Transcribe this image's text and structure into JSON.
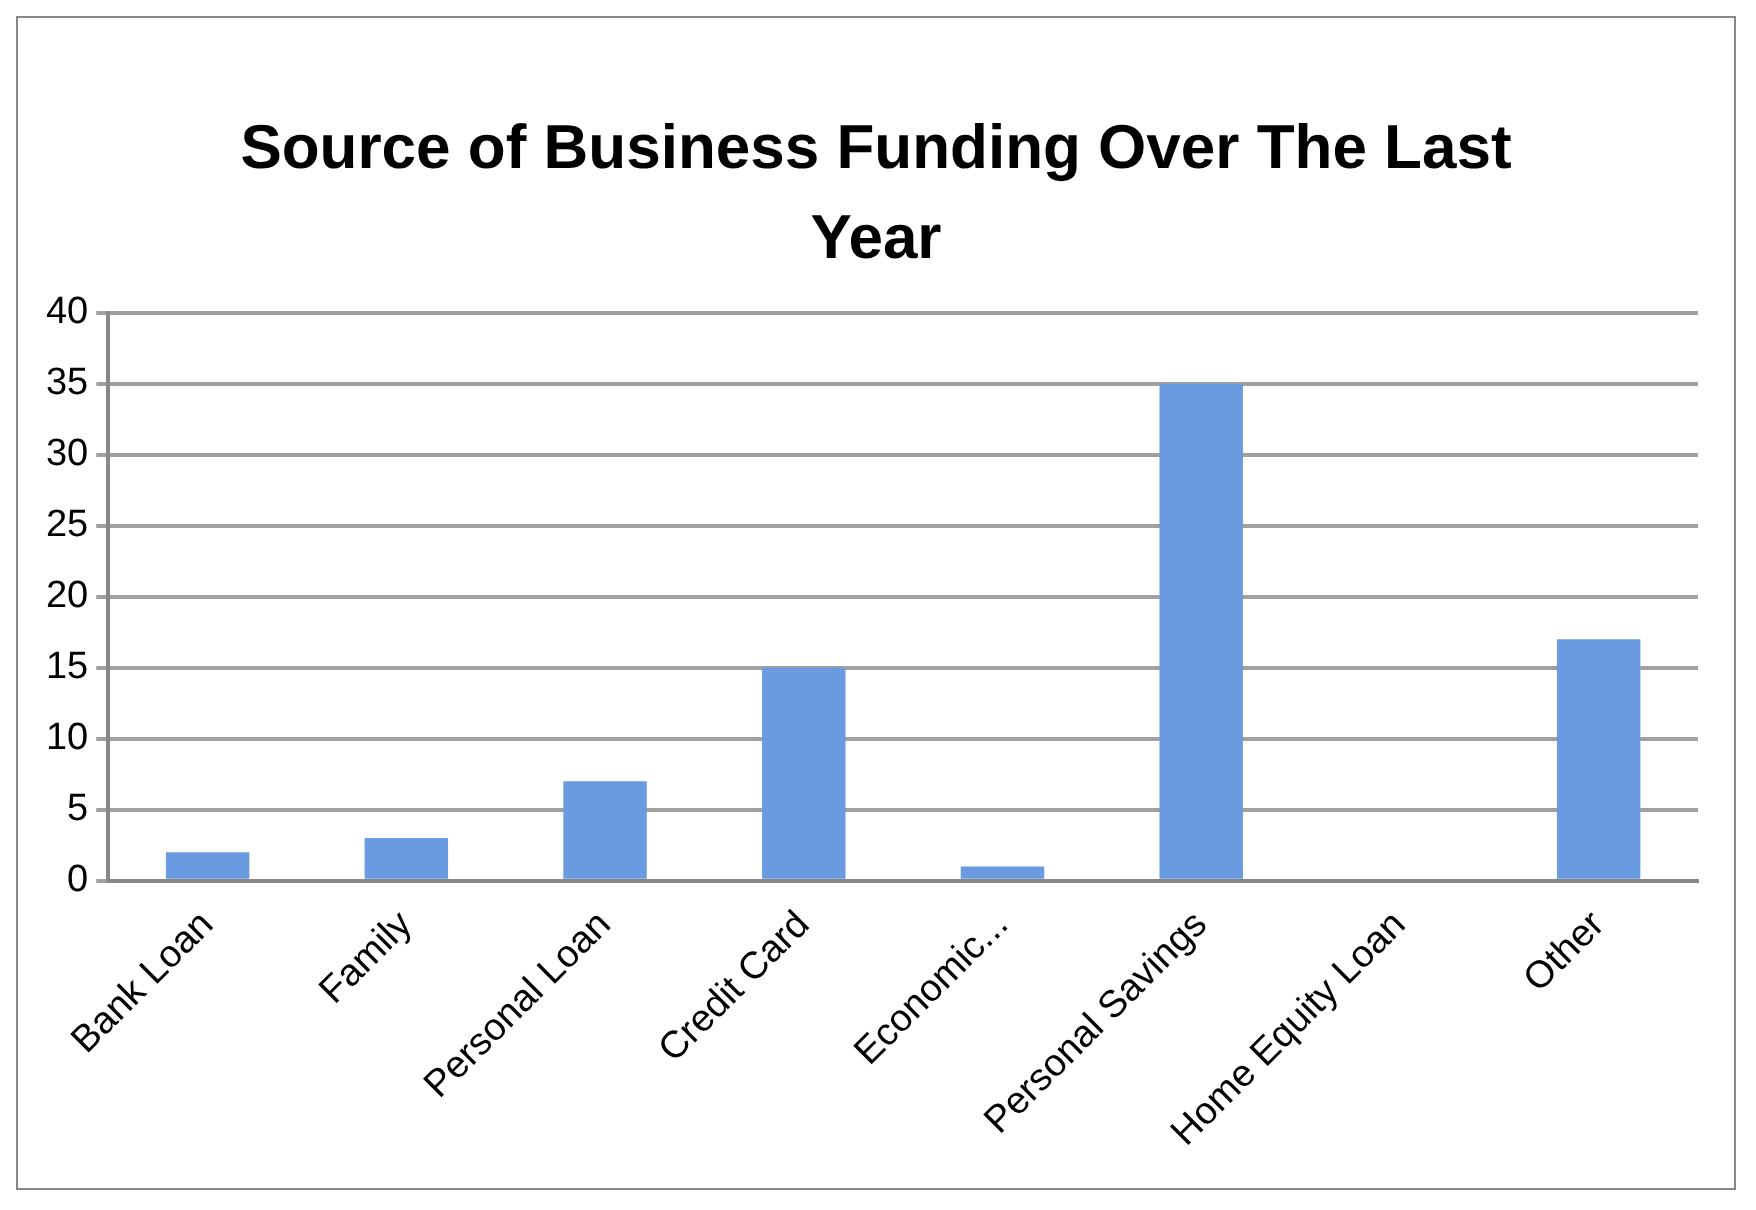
{
  "chart_data": {
    "type": "bar",
    "title": "Source of Business Funding Over The Last Year",
    "categories": [
      "Bank Loan",
      "Family",
      "Personal Loan",
      "Credit Card",
      "Economic...",
      "Personal Savings",
      "Home Equity Loan",
      "Other"
    ],
    "values": [
      2,
      3,
      7,
      15,
      1,
      35,
      0,
      17
    ],
    "color": "#6a9be0",
    "ylim": [
      0,
      40
    ],
    "yticks": [
      0,
      5,
      10,
      15,
      20,
      25,
      30,
      35,
      40
    ],
    "grid": "y",
    "legend": false
  }
}
